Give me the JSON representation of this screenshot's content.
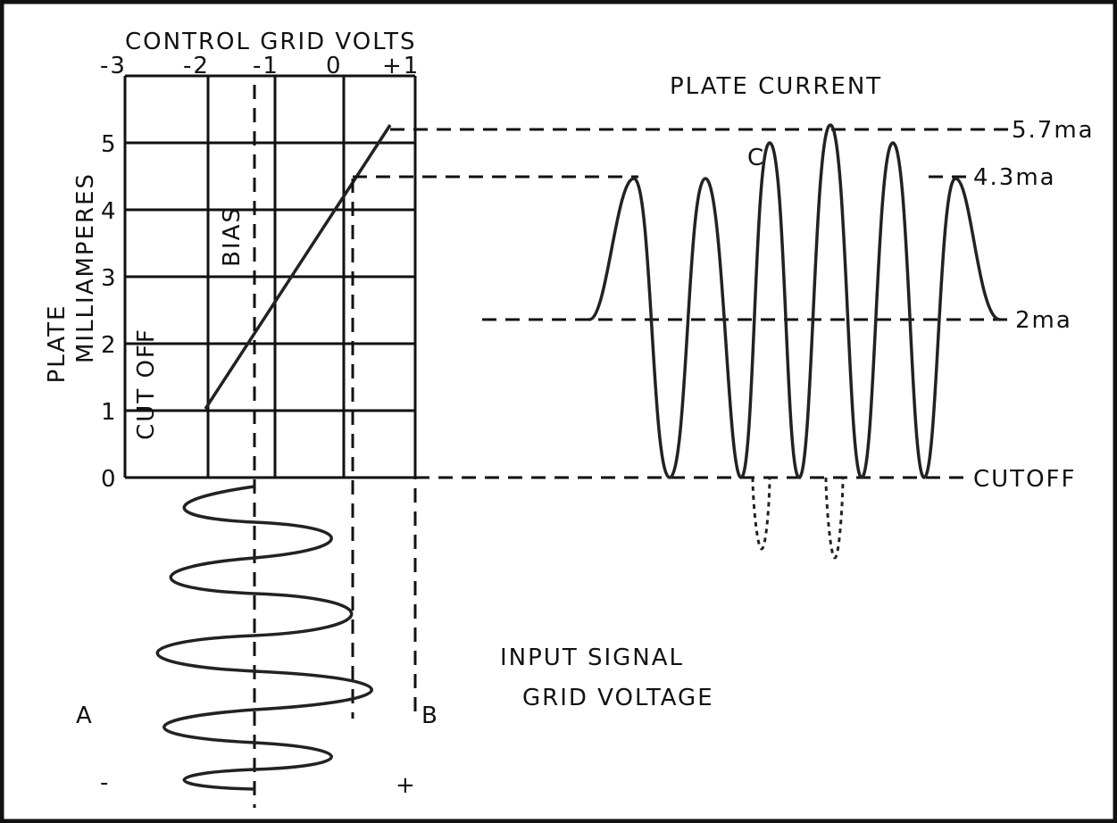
{
  "grid_chart": {
    "title": "CONTROL GRID VOLTS",
    "x_labels": [
      "-3",
      "-2",
      "-1",
      "0",
      "+1"
    ],
    "y_labels": [
      "0",
      "1",
      "2",
      "3",
      "4",
      "5"
    ],
    "y_title": [
      "PLATE",
      "MILLIAMPERES"
    ],
    "cut_off": "CUT OFF",
    "bias": "BIAS"
  },
  "plate_current": {
    "title": "PLATE CURRENT",
    "peak_label": "C",
    "levels": [
      "5.7ma",
      "4.3ma",
      "2ma",
      "CUTOFF"
    ]
  },
  "input_signal": {
    "title": [
      "INPUT SIGNAL",
      "GRID VOLTAGE"
    ],
    "start": "A",
    "end": "B",
    "minus": "-",
    "plus": "+"
  }
}
